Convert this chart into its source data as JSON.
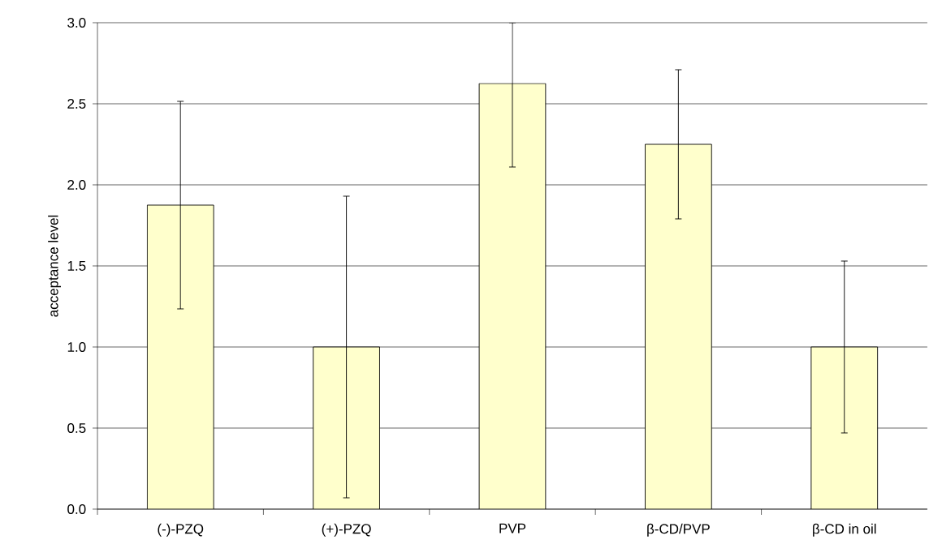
{
  "chart_data": {
    "type": "bar",
    "ylabel": "acceptance level",
    "categories": [
      "(-)-PZQ",
      "(+)-PZQ",
      "PVP",
      "β-CD/PVP",
      "β-CD in oil"
    ],
    "values": [
      1.875,
      1.0,
      2.625,
      2.25,
      1.0
    ],
    "errors": [
      0.64,
      0.93,
      [
        2.11,
        3.0
      ],
      0.46,
      0.53
    ],
    "color": "#ffffcc",
    "ylim": [
      0,
      3.0
    ],
    "yticks": [
      {
        "value": 0,
        "label": "0.0"
      },
      0.5,
      {
        "value": 1.0,
        "label": "1.0"
      },
      1.5,
      {
        "value": 2.0,
        "label": "2.0"
      },
      2.5,
      {
        "value": 3.0,
        "label": "3.0"
      }
    ],
    "grid": "y"
  }
}
